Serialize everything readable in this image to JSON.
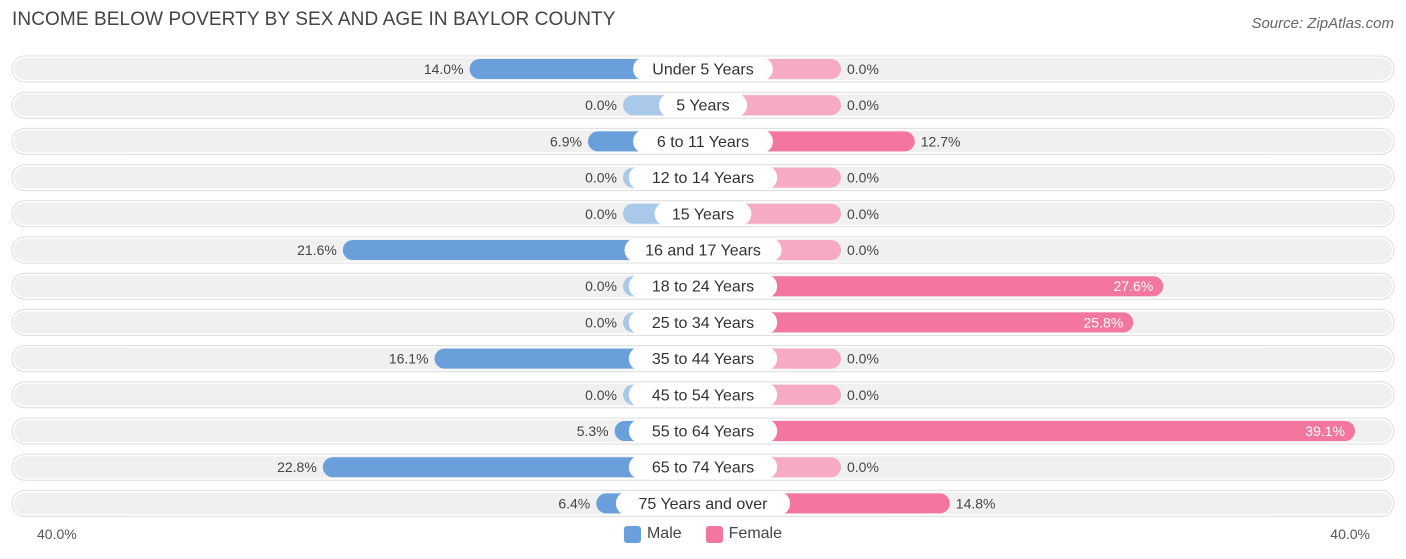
{
  "title": "INCOME BELOW POVERTY BY SEX AND AGE IN BAYLOR COUNTY",
  "source": "Source: ZipAtlas.com",
  "legend": {
    "male_label": "Male",
    "female_label": "Female"
  },
  "axis": {
    "left_label": "40.0%",
    "right_label": "40.0%"
  },
  "colors": {
    "male_strong": "#6a9fdb",
    "male_light": "#aac8ea",
    "female_strong": "#f2769d",
    "female_light": "#f6aac3",
    "row_bg": "#f0f0f0"
  },
  "chart_data": {
    "type": "bar",
    "orientation": "horizontal-diverging",
    "title": "INCOME BELOW POVERTY BY SEX AND AGE IN BAYLOR COUNTY",
    "xlim": [
      -40,
      40
    ],
    "categories": [
      "Under 5 Years",
      "5 Years",
      "6 to 11 Years",
      "12 to 14 Years",
      "15 Years",
      "16 and 17 Years",
      "18 to 24 Years",
      "25 to 34 Years",
      "35 to 44 Years",
      "45 to 54 Years",
      "55 to 64 Years",
      "65 to 74 Years",
      "75 Years and over"
    ],
    "series": [
      {
        "name": "Male",
        "values": [
          14.0,
          0.0,
          6.9,
          0.0,
          0.0,
          21.6,
          0.0,
          0.0,
          16.1,
          0.0,
          5.3,
          22.8,
          6.4
        ]
      },
      {
        "name": "Female",
        "values": [
          0.0,
          0.0,
          12.7,
          0.0,
          0.0,
          0.0,
          27.6,
          25.8,
          0.0,
          0.0,
          39.1,
          0.0,
          14.8
        ]
      }
    ],
    "labels_male": [
      "14.0%",
      "0.0%",
      "6.9%",
      "0.0%",
      "0.0%",
      "21.6%",
      "0.0%",
      "0.0%",
      "16.1%",
      "0.0%",
      "5.3%",
      "22.8%",
      "6.4%"
    ],
    "labels_female": [
      "0.0%",
      "0.0%",
      "12.7%",
      "0.0%",
      "0.0%",
      "0.0%",
      "27.6%",
      "25.8%",
      "0.0%",
      "0.0%",
      "39.1%",
      "0.0%",
      "14.8%"
    ]
  }
}
